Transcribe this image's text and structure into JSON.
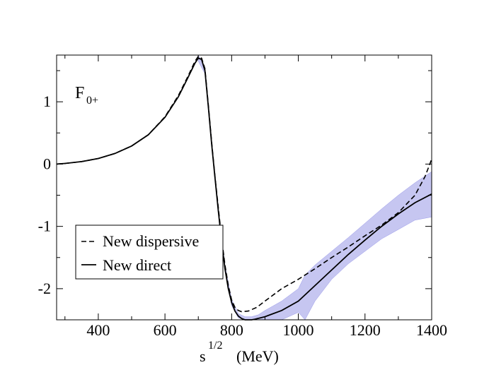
{
  "chart_data": {
    "type": "line",
    "panel_label": {
      "main": "F",
      "subscript": "0+"
    },
    "xlabel": {
      "main": "s",
      "superscript": "1/2",
      "unit": "(MeV)"
    },
    "ylabel": "",
    "xlim": [
      275,
      1400
    ],
    "ylim": [
      -2.5,
      1.75
    ],
    "xticks": [
      400,
      600,
      800,
      1000,
      1200,
      1400
    ],
    "yticks": [
      -2,
      -1,
      0,
      1
    ],
    "grid": false,
    "legend": {
      "placement": "lower-left",
      "entries": [
        "New dispersive",
        "New direct"
      ]
    },
    "series": [
      {
        "name": "New dispersive",
        "style": "dashed",
        "color": "#000000",
        "x": [
          275,
          300,
          350,
          400,
          450,
          500,
          550,
          600,
          640,
          670,
          690,
          700,
          710,
          720,
          730,
          740,
          750,
          760,
          770,
          780,
          790,
          800,
          810,
          820,
          830,
          850,
          875,
          900,
          950,
          1000,
          1050,
          1100,
          1150,
          1200,
          1250,
          1300,
          1350,
          1380,
          1400
        ],
        "y": [
          0.0,
          0.01,
          0.04,
          0.09,
          0.17,
          0.29,
          0.47,
          0.76,
          1.1,
          1.42,
          1.65,
          1.73,
          1.7,
          1.53,
          0.95,
          0.35,
          -0.2,
          -0.7,
          -1.2,
          -1.62,
          -1.95,
          -2.18,
          -2.3,
          -2.35,
          -2.37,
          -2.36,
          -2.3,
          -2.2,
          -2.0,
          -1.85,
          -1.68,
          -1.5,
          -1.33,
          -1.15,
          -0.98,
          -0.78,
          -0.5,
          -0.2,
          0.08
        ]
      },
      {
        "name": "New direct",
        "style": "solid",
        "color": "#000000",
        "x": [
          275,
          300,
          350,
          400,
          450,
          500,
          550,
          600,
          640,
          670,
          690,
          700,
          710,
          720,
          730,
          740,
          750,
          760,
          770,
          780,
          790,
          800,
          810,
          820,
          830,
          840,
          850,
          860,
          870,
          900,
          950,
          1000,
          1050,
          1100,
          1150,
          1200,
          1250,
          1300,
          1350,
          1400
        ],
        "y": [
          0.0,
          0.01,
          0.04,
          0.09,
          0.17,
          0.29,
          0.47,
          0.75,
          1.08,
          1.4,
          1.62,
          1.7,
          1.68,
          1.5,
          0.92,
          0.32,
          -0.22,
          -0.75,
          -1.25,
          -1.68,
          -2.0,
          -2.22,
          -2.36,
          -2.44,
          -2.48,
          -2.5,
          -2.51,
          -2.51,
          -2.49,
          -2.45,
          -2.35,
          -2.2,
          -1.95,
          -1.7,
          -1.45,
          -1.22,
          -1.0,
          -0.8,
          -0.62,
          -0.48
        ]
      }
    ],
    "band": {
      "name": "New direct uncertainty",
      "color": "#5b5bd6",
      "x": [
        700,
        720,
        740,
        760,
        780,
        800,
        820,
        840,
        860,
        880,
        900,
        950,
        1000,
        1020,
        1050,
        1100,
        1150,
        1200,
        1250,
        1300,
        1350,
        1400
      ],
      "y_low": [
        1.65,
        1.45,
        0.28,
        -0.8,
        -1.72,
        -2.27,
        -2.47,
        -2.5,
        -2.5,
        -2.5,
        -2.5,
        -2.5,
        -2.38,
        -2.5,
        -2.2,
        -1.85,
        -1.6,
        -1.4,
        -1.2,
        -1.05,
        -0.9,
        -0.85
      ],
      "y_high": [
        1.75,
        1.55,
        0.36,
        -0.7,
        -1.62,
        -2.17,
        -2.4,
        -2.45,
        -2.45,
        -2.42,
        -2.35,
        -2.2,
        -2.0,
        -1.78,
        -1.62,
        -1.4,
        -1.18,
        -0.95,
        -0.72,
        -0.5,
        -0.3,
        -0.12
      ]
    }
  }
}
